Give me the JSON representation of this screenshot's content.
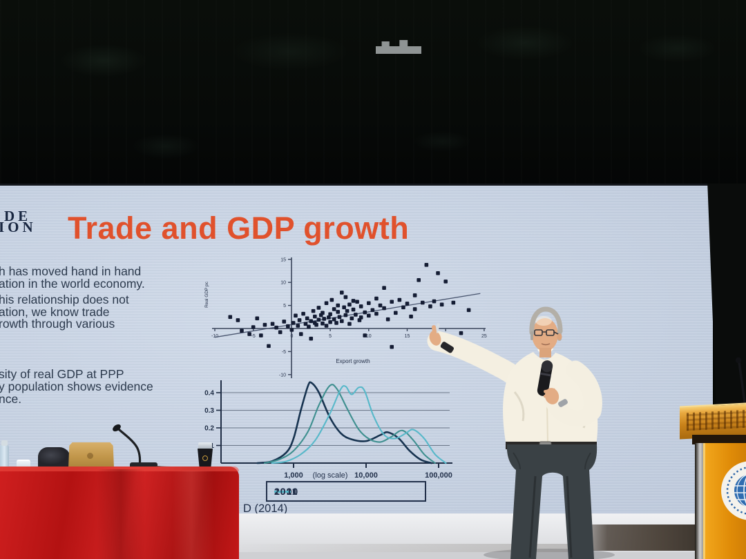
{
  "scene": {
    "description": "Presenter on a conference stage pointing at a projected slide",
    "colors": {
      "slide_bg": "#c8d3e3",
      "title_orange": "#e0512c",
      "slide_text_navy": "#2c3a4d",
      "scatter_point_navy": "#141c33",
      "curve_1990": "#16324f",
      "curve_2000": "#3e8f8f",
      "curve_2011": "#57b8c9",
      "tablecloth_red": "#c01616",
      "lectern_orange": "#e89a10"
    },
    "objects": [
      "stage curtain",
      "projection screen",
      "presenter with handheld microphone",
      "red draped table",
      "water bottle",
      "glass",
      "bag",
      "gold laptop",
      "gooseneck microphone",
      "dark cup",
      "lectern with globe logo",
      "lectern microphone"
    ]
  },
  "slide": {
    "logo_fragment": [
      "DE",
      "ION"
    ],
    "title": "Trade and GDP growth",
    "body1": [
      "h has moved hand in hand",
      "ation in the world economy.",
      "his relationship does not",
      "ation, we know trade",
      "rowth through various"
    ],
    "body2": [
      "sity of real GDP at PPP",
      "y population shows evidence",
      "nce."
    ],
    "citation": "D (2014)"
  },
  "chart_data": [
    {
      "type": "scatter",
      "title": "",
      "xlabel": "Export growth",
      "ylabel": "Real GDP pc",
      "xlim": [
        -10,
        25
      ],
      "ylim": [
        -10,
        15
      ],
      "x_ticks": [
        -10,
        -5,
        0,
        5,
        10,
        15,
        20,
        25
      ],
      "y_ticks": [
        15,
        10,
        5,
        -5,
        -10
      ],
      "trend_line": {
        "x1": -10,
        "y1": -1.9,
        "x2": 24.5,
        "y2": 7.6
      },
      "points": [
        [
          -8,
          2.5
        ],
        [
          -7,
          1.8
        ],
        [
          -6.5,
          -0.5
        ],
        [
          -5.5,
          -1.2
        ],
        [
          -5,
          0.3
        ],
        [
          -4.5,
          2.2
        ],
        [
          -4,
          -1.5
        ],
        [
          -3.5,
          0.8
        ],
        [
          -3,
          -3.8
        ],
        [
          -2.5,
          1.0
        ],
        [
          -2,
          0.2
        ],
        [
          -1.5,
          -0.8
        ],
        [
          -1,
          1.5
        ],
        [
          -0.5,
          0.5
        ],
        [
          0,
          -0.3
        ],
        [
          0.2,
          1.2
        ],
        [
          0.5,
          2.8
        ],
        [
          0.8,
          0.6
        ],
        [
          1,
          1.8
        ],
        [
          1.2,
          -1.2
        ],
        [
          1.5,
          3.2
        ],
        [
          1.8,
          1.0
        ],
        [
          2,
          2.2
        ],
        [
          2.2,
          0.4
        ],
        [
          2.5,
          1.6
        ],
        [
          2.5,
          -2.2
        ],
        [
          2.8,
          3.8
        ],
        [
          3,
          1.2
        ],
        [
          3,
          2.6
        ],
        [
          3.2,
          0.8
        ],
        [
          3.5,
          4.5
        ],
        [
          3.5,
          1.9
        ],
        [
          3.8,
          2.9
        ],
        [
          4,
          1.1
        ],
        [
          4,
          3.4
        ],
        [
          4.2,
          2.1
        ],
        [
          4.5,
          5.5
        ],
        [
          4.5,
          0.6
        ],
        [
          4.8,
          2.4
        ],
        [
          5,
          3.1
        ],
        [
          5,
          1.4
        ],
        [
          5.2,
          6.2
        ],
        [
          5.5,
          2.0
        ],
        [
          5.5,
          4.2
        ],
        [
          5.8,
          1.2
        ],
        [
          6,
          3.6
        ],
        [
          6,
          5.0
        ],
        [
          6.2,
          2.5
        ],
        [
          6.5,
          7.8
        ],
        [
          6.5,
          1.6
        ],
        [
          6.8,
          4.6
        ],
        [
          7,
          2.9
        ],
        [
          7,
          6.8
        ],
        [
          7.2,
          3.8
        ],
        [
          7.5,
          5.2
        ],
        [
          7.5,
          1.0
        ],
        [
          7.8,
          2.2
        ],
        [
          8,
          4.1
        ],
        [
          8,
          6.0
        ],
        [
          8.3,
          3.0
        ],
        [
          8.5,
          5.8
        ],
        [
          8.8,
          1.8
        ],
        [
          9,
          4.8
        ],
        [
          9,
          2.4
        ],
        [
          9.5,
          3.5
        ],
        [
          9.5,
          -1.5
        ],
        [
          10,
          5.5
        ],
        [
          10,
          2.8
        ],
        [
          10.5,
          4.0
        ],
        [
          11,
          6.5
        ],
        [
          11,
          3.2
        ],
        [
          11.5,
          5.0
        ],
        [
          12,
          8.8
        ],
        [
          12,
          4.4
        ],
        [
          12.5,
          2.0
        ],
        [
          13,
          5.8
        ],
        [
          13,
          -4.0
        ],
        [
          13.5,
          3.4
        ],
        [
          14,
          6.2
        ],
        [
          14.5,
          4.6
        ],
        [
          15,
          5.4
        ],
        [
          15.5,
          2.6
        ],
        [
          16,
          7.2
        ],
        [
          16,
          4.2
        ],
        [
          16.5,
          10.5
        ],
        [
          17,
          5.6
        ],
        [
          17.5,
          13.8
        ],
        [
          18,
          4.8
        ],
        [
          18.5,
          5.9
        ],
        [
          19,
          12.0
        ],
        [
          19.5,
          5.2
        ],
        [
          20,
          10.2
        ],
        [
          20.5,
          -2.8
        ],
        [
          21,
          5.6
        ],
        [
          22,
          -1.0
        ],
        [
          23,
          4.0
        ]
      ]
    },
    {
      "type": "line",
      "title": "",
      "x_scale": "log",
      "x_note": "(log scale)",
      "x_ticks": [
        1000,
        10000,
        100000
      ],
      "x_tick_labels": [
        "1,000",
        "10,000",
        "100,000"
      ],
      "y_ticks": [
        0.4,
        0.3,
        0.2,
        0.1
      ],
      "legend": [
        "1990",
        "2000",
        "2011"
      ],
      "legend_position": "bottom",
      "series": [
        {
          "name": "1990",
          "color": "#16324f",
          "points_logx_density": [
            [
              2.5,
              0
            ],
            [
              2.7,
              0.01
            ],
            [
              2.9,
              0.06
            ],
            [
              3.0,
              0.14
            ],
            [
              3.1,
              0.3
            ],
            [
              3.2,
              0.44
            ],
            [
              3.25,
              0.455
            ],
            [
              3.35,
              0.4
            ],
            [
              3.5,
              0.26
            ],
            [
              3.65,
              0.17
            ],
            [
              3.8,
              0.135
            ],
            [
              4.0,
              0.125
            ],
            [
              4.2,
              0.16
            ],
            [
              4.3,
              0.175
            ],
            [
              4.45,
              0.14
            ],
            [
              4.6,
              0.07
            ],
            [
              4.75,
              0.02
            ],
            [
              4.9,
              0
            ]
          ]
        },
        {
          "name": "2000",
          "color": "#3e8f8f",
          "points_logx_density": [
            [
              2.6,
              0
            ],
            [
              2.8,
              0.02
            ],
            [
              3.0,
              0.07
            ],
            [
              3.2,
              0.18
            ],
            [
              3.35,
              0.33
            ],
            [
              3.5,
              0.44
            ],
            [
              3.6,
              0.42
            ],
            [
              3.75,
              0.3
            ],
            [
              3.9,
              0.19
            ],
            [
              4.05,
              0.135
            ],
            [
              4.2,
              0.12
            ],
            [
              4.35,
              0.15
            ],
            [
              4.5,
              0.185
            ],
            [
              4.65,
              0.13
            ],
            [
              4.8,
              0.05
            ],
            [
              4.95,
              0
            ]
          ]
        },
        {
          "name": "2011",
          "color": "#57b8c9",
          "points_logx_density": [
            [
              2.7,
              0
            ],
            [
              2.9,
              0.01
            ],
            [
              3.1,
              0.05
            ],
            [
              3.3,
              0.13
            ],
            [
              3.5,
              0.28
            ],
            [
              3.65,
              0.42
            ],
            [
              3.72,
              0.435
            ],
            [
              3.8,
              0.39
            ],
            [
              3.9,
              0.43
            ],
            [
              3.98,
              0.41
            ],
            [
              4.1,
              0.27
            ],
            [
              4.25,
              0.16
            ],
            [
              4.4,
              0.14
            ],
            [
              4.55,
              0.17
            ],
            [
              4.65,
              0.19
            ],
            [
              4.8,
              0.14
            ],
            [
              4.95,
              0.05
            ],
            [
              5.1,
              0
            ]
          ]
        }
      ]
    }
  ]
}
